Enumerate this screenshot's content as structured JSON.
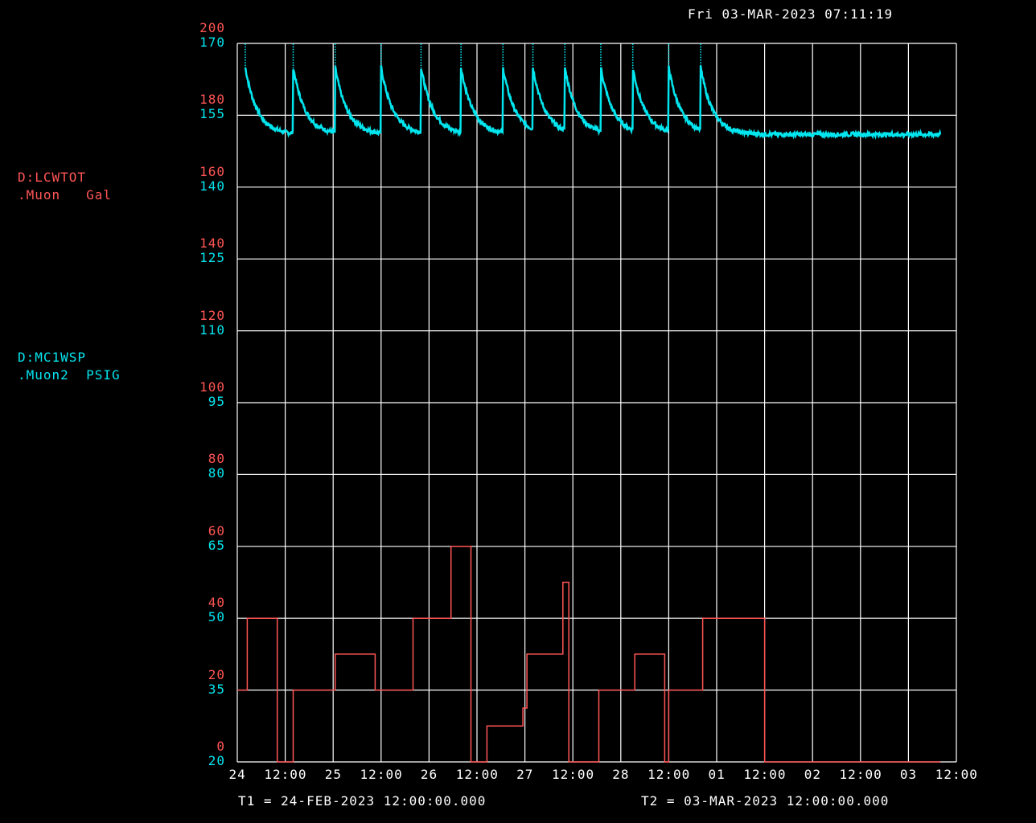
{
  "header": {
    "timestamp": "Fri 03-MAR-2023 07:11:19"
  },
  "devices": [
    {
      "name": "D:LCWTOT",
      "unit_line": ".Muon   Gal",
      "color": "#ff5555"
    },
    {
      "name": "D:MC1WSP",
      "unit_line": ".Muon2  PSIG",
      "color": "#00e5ee"
    }
  ],
  "footer": {
    "t1": "T1 = 24-FEB-2023 12:00:00.000",
    "t2": "T2 = 03-MAR-2023 12:00:00.000"
  },
  "chart_data": {
    "type": "line",
    "title": "",
    "xlabel": "",
    "grid": true,
    "x_range": [
      "2023-02-24 00:00",
      "2023-03-03 12:00"
    ],
    "x_tick_labels": [
      "24",
      "12:00",
      "25",
      "12:00",
      "26",
      "12:00",
      "27",
      "12:00",
      "28",
      "12:00",
      "01",
      "12:00",
      "02",
      "12:00",
      "03",
      "12:00"
    ],
    "left_axis_red": {
      "device": "D:LCWTOT",
      "ylim": [
        0,
        200
      ],
      "tick_labels": [
        "0",
        "20",
        "40",
        "60",
        "80",
        "100",
        "120",
        "140",
        "160",
        "180",
        "200"
      ]
    },
    "left_axis_cyan": {
      "device": "D:MC1WSP",
      "ylim": [
        20,
        170
      ],
      "tick_labels": [
        "20",
        "35",
        "50",
        "65",
        "80",
        "95",
        "110",
        "125",
        "140",
        "155",
        "170"
      ]
    },
    "series": [
      {
        "name": "D:LCWTOT",
        "axis": "red",
        "color": "#ff5555",
        "step": true,
        "points": [
          [
            "2023-02-24 00:00",
            20
          ],
          [
            "2023-02-24 02:30",
            20
          ],
          [
            "2023-02-24 02:30",
            40
          ],
          [
            "2023-02-24 10:00",
            40
          ],
          [
            "2023-02-24 10:00",
            0
          ],
          [
            "2023-02-24 14:00",
            0
          ],
          [
            "2023-02-24 14:00",
            20
          ],
          [
            "2023-02-25 00:30",
            20
          ],
          [
            "2023-02-25 00:30",
            30
          ],
          [
            "2023-02-25 10:30",
            30
          ],
          [
            "2023-02-25 10:30",
            20
          ],
          [
            "2023-02-25 20:00",
            20
          ],
          [
            "2023-02-25 20:00",
            40
          ],
          [
            "2023-02-26 05:30",
            40
          ],
          [
            "2023-02-26 05:30",
            60
          ],
          [
            "2023-02-26 10:30",
            60
          ],
          [
            "2023-02-26 10:30",
            0
          ],
          [
            "2023-02-26 14:30",
            0
          ],
          [
            "2023-02-26 14:30",
            10
          ],
          [
            "2023-02-26 23:30",
            10
          ],
          [
            "2023-02-26 23:30",
            15
          ],
          [
            "2023-02-27 00:30",
            15
          ],
          [
            "2023-02-27 00:30",
            30
          ],
          [
            "2023-02-27 09:30",
            30
          ],
          [
            "2023-02-27 09:30",
            50
          ],
          [
            "2023-02-27 11:00",
            50
          ],
          [
            "2023-02-27 11:00",
            0
          ],
          [
            "2023-02-27 18:30",
            0
          ],
          [
            "2023-02-27 18:30",
            20
          ],
          [
            "2023-02-28 03:30",
            20
          ],
          [
            "2023-02-28 03:30",
            30
          ],
          [
            "2023-02-28 11:00",
            30
          ],
          [
            "2023-02-28 11:00",
            0
          ],
          [
            "2023-02-28 12:00",
            0
          ],
          [
            "2023-02-28 12:00",
            20
          ],
          [
            "2023-02-28 20:30",
            20
          ],
          [
            "2023-02-28 20:30",
            40
          ],
          [
            "2023-03-01 12:00",
            40
          ],
          [
            "2023-03-01 12:00",
            0
          ],
          [
            "2023-03-03 08:00",
            0
          ]
        ]
      },
      {
        "name": "D:MC1WSP",
        "axis": "cyan",
        "color": "#00e5ee",
        "baseline": 151,
        "spike_peak": 165,
        "spike_times": [
          "2023-02-24 02:00",
          "2023-02-24 14:00",
          "2023-02-25 00:30",
          "2023-02-25 12:00",
          "2023-02-25 22:00",
          "2023-02-26 08:00",
          "2023-02-26 18:30",
          "2023-02-27 02:00",
          "2023-02-27 10:00",
          "2023-02-27 19:00",
          "2023-02-28 03:00",
          "2023-02-28 12:00",
          "2023-02-28 20:00"
        ],
        "recovery_hours": 3,
        "end": "2023-03-03 08:00"
      }
    ]
  }
}
